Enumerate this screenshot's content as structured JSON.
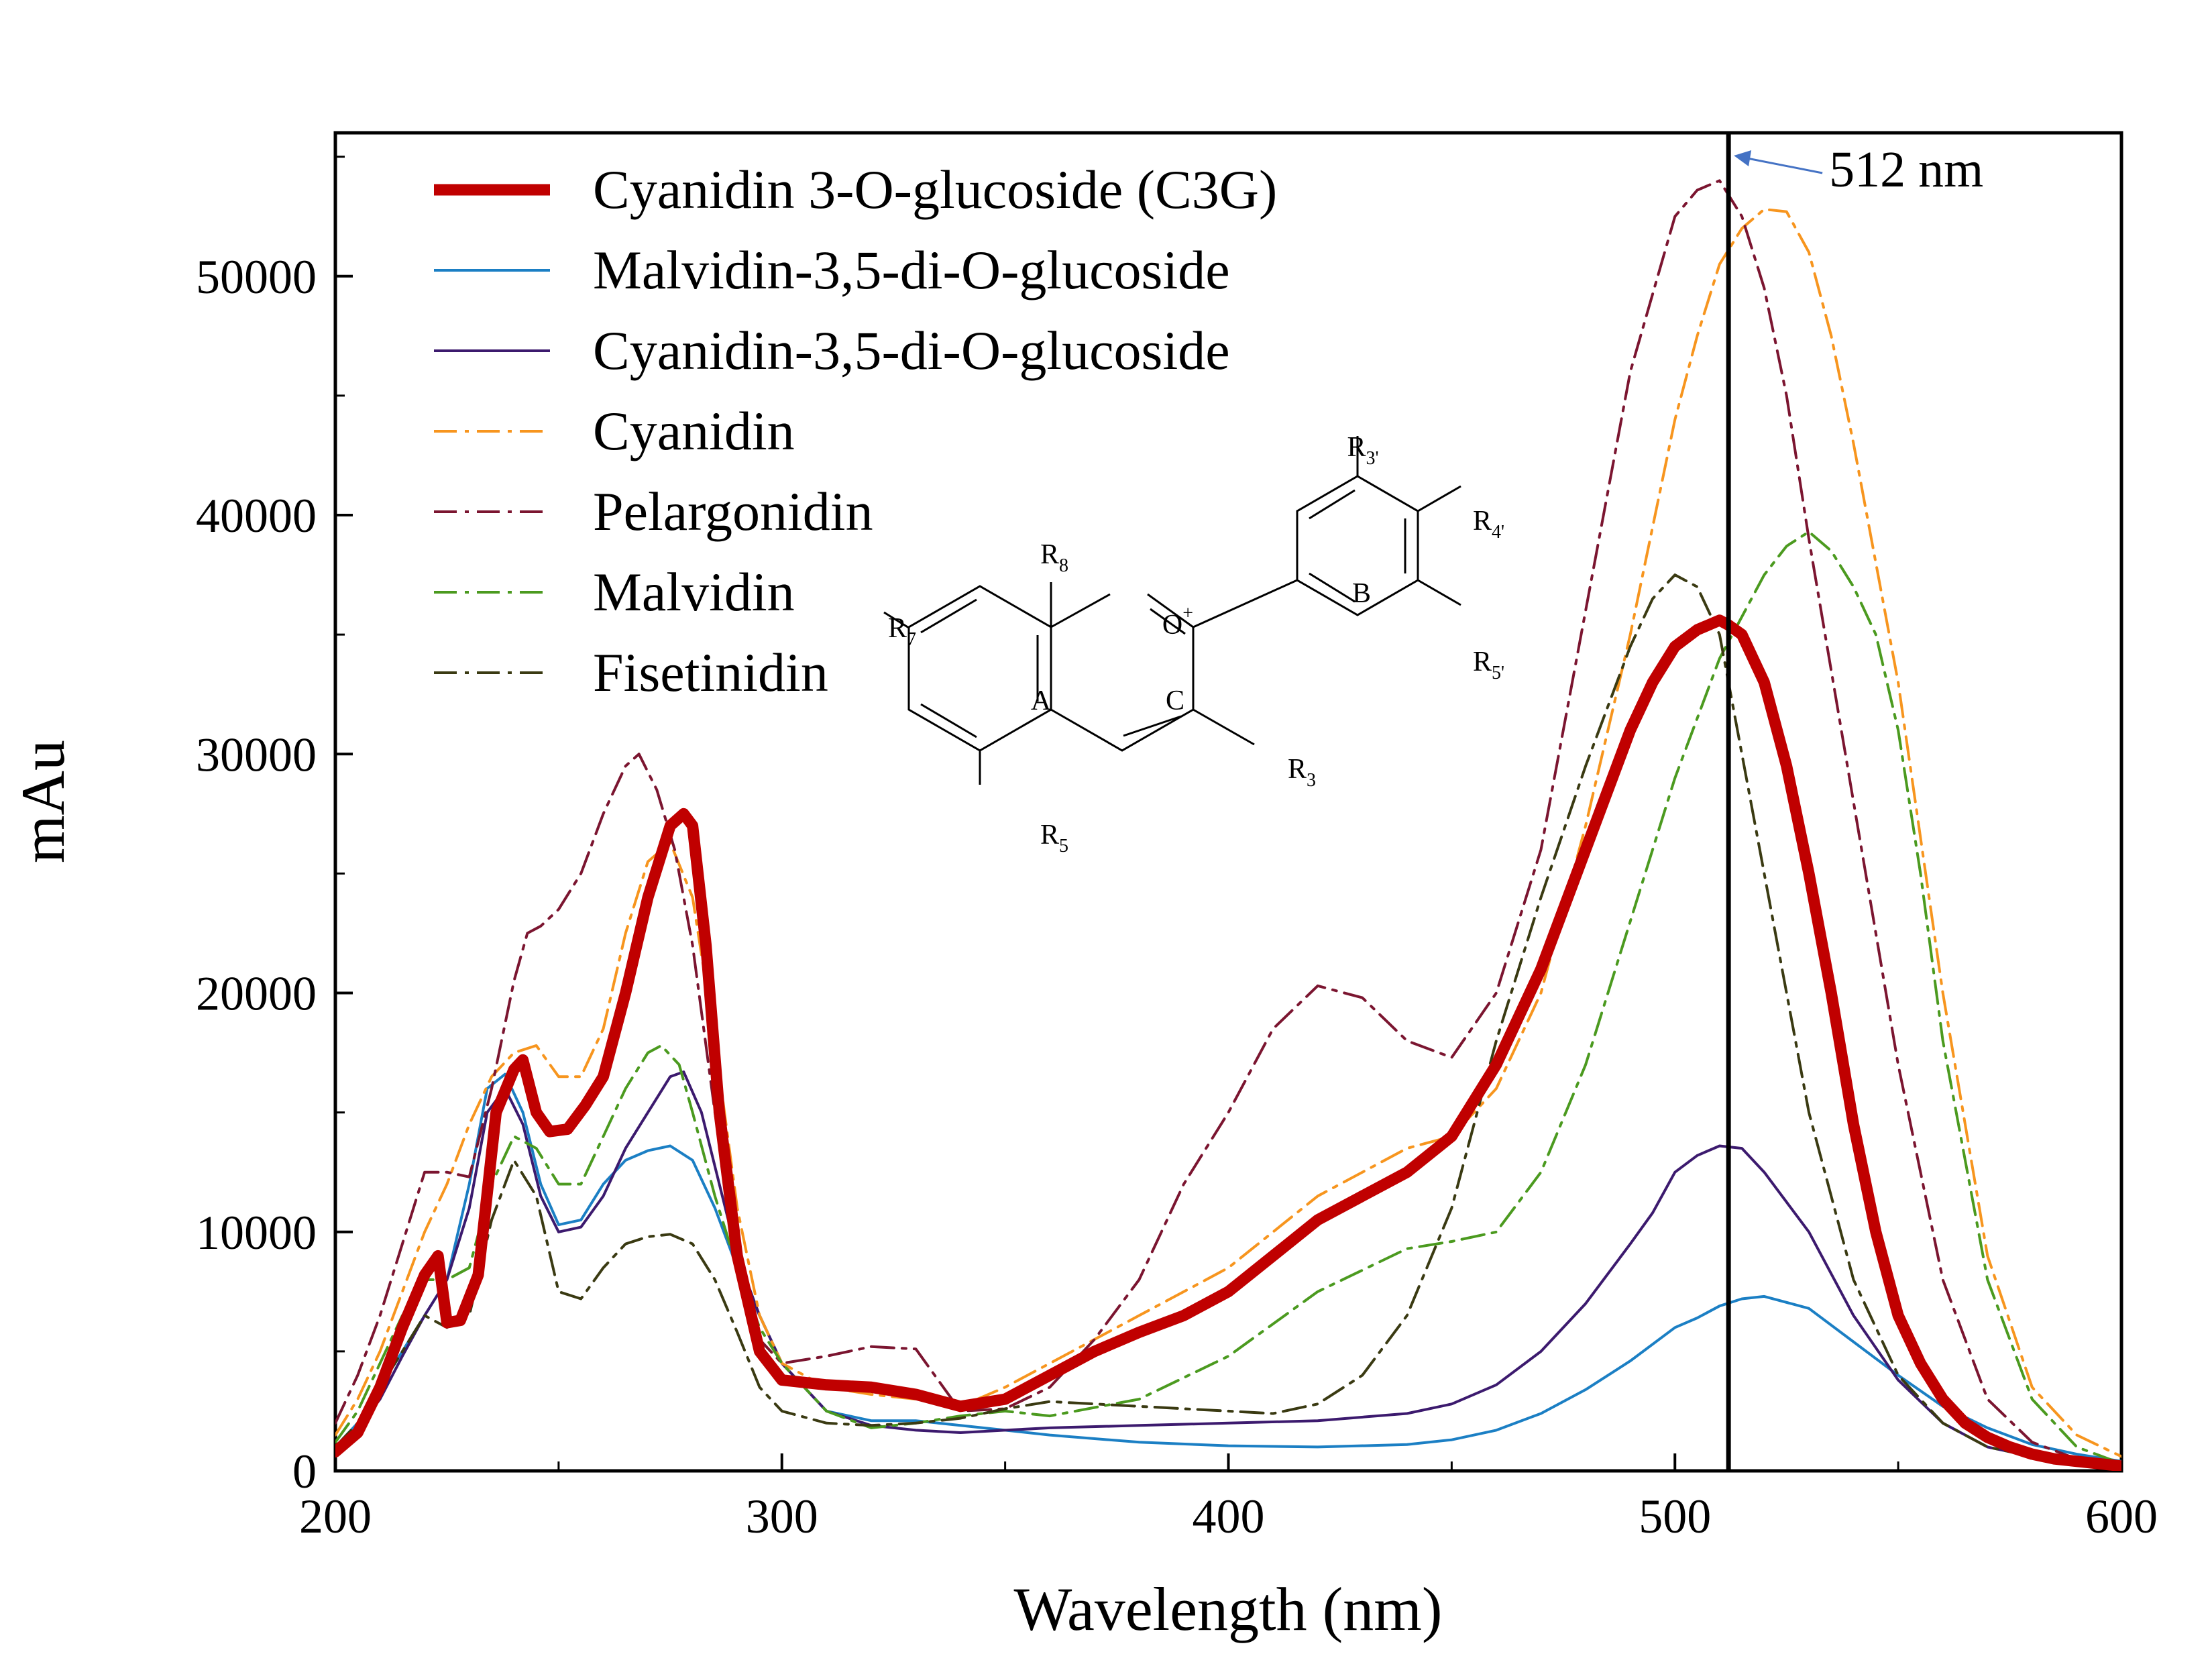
{
  "chart_data": {
    "type": "line",
    "title": "",
    "xlabel": "Wavelength (nm)",
    "ylabel": "mAu",
    "xlim": [
      200,
      600
    ],
    "ylim": [
      0,
      56000
    ],
    "xticks": [
      200,
      300,
      400,
      500,
      600
    ],
    "yticks": [
      0,
      10000,
      20000,
      30000,
      40000,
      50000
    ],
    "grid": false,
    "legend_position": "top-left",
    "annotations": [
      {
        "text": "512 nm",
        "x": 512,
        "type": "vertical-line"
      }
    ],
    "inset": {
      "type": "chemical-structure",
      "ring_labels": [
        "A",
        "C",
        "B"
      ],
      "oxonium_label": "O",
      "oxonium_charge": "+",
      "substituents": [
        {
          "base": "R",
          "sub": "8"
        },
        {
          "base": "R",
          "sub": "7"
        },
        {
          "base": "R",
          "sub": "5"
        },
        {
          "base": "R",
          "sub": "3"
        },
        {
          "base": "R",
          "sub": "3'"
        },
        {
          "base": "R",
          "sub": "4'"
        },
        {
          "base": "R",
          "sub": "5'"
        }
      ]
    },
    "series": [
      {
        "name": "Cyanidin 3-O-glucoside (C3G)",
        "color": "#c00000",
        "style": "solid",
        "weight": "bold",
        "x": [
          200,
          205,
          210,
          215,
          220,
          223,
          225,
          228,
          232,
          236,
          240,
          242,
          245,
          248,
          252,
          256,
          260,
          265,
          270,
          275,
          278,
          280,
          283,
          286,
          290,
          295,
          300,
          305,
          310,
          320,
          330,
          340,
          350,
          360,
          370,
          380,
          390,
          400,
          410,
          420,
          430,
          440,
          450,
          460,
          470,
          480,
          490,
          495,
          500,
          505,
          510,
          512,
          515,
          520,
          525,
          530,
          535,
          540,
          545,
          550,
          555,
          560,
          565,
          570,
          575,
          580,
          585,
          590,
          595,
          600
        ],
        "y": [
          800,
          1600,
          3500,
          6000,
          8200,
          9000,
          6200,
          6300,
          8200,
          15000,
          16800,
          17200,
          15000,
          14200,
          14300,
          15300,
          16500,
          20000,
          24000,
          27000,
          27500,
          27000,
          22000,
          15000,
          9000,
          5000,
          3800,
          3700,
          3600,
          3500,
          3200,
          2700,
          3000,
          4000,
          5000,
          5800,
          6500,
          7500,
          9000,
          10500,
          11500,
          12500,
          14000,
          17000,
          21000,
          26000,
          31000,
          33000,
          34500,
          35200,
          35600,
          35400,
          35000,
          33000,
          29500,
          25000,
          20000,
          14500,
          10000,
          6500,
          4500,
          3000,
          2000,
          1400,
          1000,
          700,
          500,
          400,
          300,
          200
        ]
      },
      {
        "name": "Malvidin-3,5-di-O-glucoside",
        "color": "#1b7fc4",
        "style": "solid",
        "weight": "normal",
        "x": [
          200,
          205,
          210,
          215,
          220,
          225,
          230,
          234,
          238,
          242,
          246,
          250,
          255,
          260,
          265,
          270,
          275,
          280,
          285,
          290,
          295,
          300,
          310,
          320,
          330,
          340,
          350,
          360,
          380,
          400,
          420,
          440,
          450,
          460,
          470,
          480,
          490,
          500,
          505,
          510,
          515,
          520,
          530,
          540,
          550,
          560,
          570,
          580,
          590,
          600
        ],
        "y": [
          1000,
          2000,
          3500,
          5000,
          6500,
          8000,
          12000,
          16000,
          16600,
          15000,
          12000,
          10300,
          10500,
          12000,
          13000,
          13400,
          13600,
          13000,
          11000,
          8500,
          6500,
          4500,
          2500,
          2100,
          2100,
          1900,
          1700,
          1500,
          1200,
          1050,
          1000,
          1100,
          1300,
          1700,
          2400,
          3400,
          4600,
          6000,
          6400,
          6900,
          7200,
          7300,
          6800,
          5400,
          4000,
          2700,
          1800,
          1100,
          700,
          400
        ]
      },
      {
        "name": "Cyanidin-3,5-di-O-glucoside",
        "color": "#3c1a6e",
        "style": "solid",
        "weight": "normal",
        "x": [
          200,
          205,
          210,
          215,
          220,
          225,
          230,
          234,
          238,
          242,
          246,
          250,
          255,
          260,
          265,
          270,
          275,
          278,
          282,
          286,
          290,
          295,
          300,
          310,
          320,
          330,
          340,
          350,
          360,
          380,
          400,
          420,
          440,
          450,
          460,
          470,
          480,
          490,
          495,
          500,
          505,
          510,
          515,
          520,
          530,
          540,
          550,
          560,
          570,
          580,
          590,
          600
        ],
        "y": [
          900,
          1800,
          3000,
          4800,
          6500,
          8000,
          11000,
          15000,
          16000,
          14500,
          11500,
          10000,
          10200,
          11500,
          13500,
          15000,
          16500,
          16700,
          15000,
          12000,
          9000,
          6500,
          4500,
          2500,
          1900,
          1700,
          1600,
          1700,
          1800,
          1900,
          2000,
          2100,
          2400,
          2800,
          3600,
          5000,
          7000,
          9500,
          10800,
          12500,
          13200,
          13600,
          13500,
          12500,
          10000,
          6500,
          3800,
          2000,
          1000,
          600,
          300,
          200
        ]
      },
      {
        "name": "Cyanidin",
        "color": "#f7951e",
        "style": "dashdot",
        "weight": "normal",
        "x": [
          200,
          205,
          210,
          215,
          220,
          225,
          230,
          235,
          240,
          245,
          250,
          255,
          260,
          265,
          270,
          275,
          280,
          285,
          290,
          295,
          300,
          310,
          320,
          330,
          340,
          350,
          360,
          380,
          400,
          420,
          440,
          450,
          460,
          470,
          480,
          490,
          500,
          505,
          510,
          515,
          520,
          525,
          530,
          535,
          540,
          550,
          560,
          570,
          580,
          590,
          600
        ],
        "y": [
          1500,
          3000,
          5000,
          7500,
          10000,
          12000,
          14500,
          16500,
          17500,
          17800,
          16500,
          16500,
          18500,
          22500,
          25500,
          26300,
          24000,
          18000,
          11000,
          6500,
          4500,
          3500,
          3200,
          3000,
          2700,
          3500,
          4500,
          6500,
          8500,
          11500,
          13500,
          14000,
          16000,
          20000,
          27000,
          35000,
          44000,
          47500,
          50500,
          52000,
          52800,
          52700,
          51000,
          47500,
          43000,
          33000,
          20000,
          9000,
          3500,
          1500,
          600
        ]
      },
      {
        "name": "Pelargonidin",
        "color": "#7b1530",
        "style": "dashdot",
        "weight": "normal",
        "x": [
          200,
          205,
          210,
          215,
          220,
          225,
          230,
          235,
          240,
          243,
          246,
          250,
          255,
          260,
          265,
          268,
          272,
          276,
          280,
          285,
          290,
          295,
          300,
          310,
          320,
          330,
          340,
          350,
          360,
          370,
          380,
          390,
          400,
          410,
          420,
          430,
          440,
          450,
          460,
          470,
          480,
          490,
          500,
          505,
          510,
          515,
          520,
          525,
          530,
          540,
          550,
          560,
          570,
          580,
          590,
          600
        ],
        "y": [
          2000,
          4000,
          6500,
          9500,
          12500,
          12500,
          12300,
          16000,
          20500,
          22500,
          22800,
          23500,
          25000,
          27500,
          29500,
          30000,
          28500,
          26000,
          22000,
          15000,
          9000,
          5500,
          4500,
          4800,
          5200,
          5100,
          2500,
          2600,
          3500,
          5500,
          8000,
          12000,
          15000,
          18500,
          20300,
          19800,
          18000,
          17300,
          20000,
          26000,
          36000,
          46000,
          52500,
          53600,
          54000,
          52500,
          49500,
          45000,
          39000,
          28000,
          17000,
          8000,
          3000,
          1200,
          500,
          300
        ]
      },
      {
        "name": "Malvidin",
        "color": "#4b9a1f",
        "style": "dashdot",
        "weight": "normal",
        "x": [
          200,
          205,
          210,
          215,
          220,
          225,
          230,
          235,
          240,
          245,
          250,
          255,
          260,
          265,
          270,
          273,
          277,
          280,
          285,
          290,
          295,
          300,
          310,
          320,
          330,
          340,
          350,
          360,
          380,
          400,
          420,
          440,
          450,
          460,
          470,
          480,
          490,
          500,
          510,
          520,
          525,
          530,
          535,
          540,
          545,
          550,
          555,
          560,
          570,
          580,
          590,
          600
        ],
        "y": [
          1200,
          2500,
          4500,
          6500,
          8000,
          8000,
          8500,
          12000,
          14000,
          13500,
          12000,
          12000,
          14000,
          16000,
          17500,
          17800,
          17000,
          15000,
          11500,
          8500,
          6000,
          4500,
          2500,
          1800,
          2000,
          2300,
          2500,
          2300,
          3000,
          4800,
          7500,
          9300,
          9600,
          10000,
          12500,
          17000,
          23000,
          29000,
          34000,
          37500,
          38700,
          39300,
          38500,
          37000,
          35000,
          31000,
          25000,
          18000,
          8000,
          3000,
          1000,
          300
        ]
      },
      {
        "name": "Fisetinidin",
        "color": "#3a3a12",
        "style": "dashdot",
        "weight": "normal",
        "x": [
          200,
          205,
          210,
          215,
          220,
          225,
          230,
          235,
          240,
          245,
          250,
          255,
          260,
          265,
          270,
          275,
          280,
          285,
          290,
          295,
          300,
          310,
          320,
          330,
          340,
          350,
          360,
          380,
          400,
          410,
          420,
          430,
          440,
          450,
          460,
          470,
          480,
          490,
          495,
          500,
          505,
          510,
          515,
          520,
          530,
          540,
          550,
          560,
          570,
          580,
          590,
          600
        ],
        "y": [
          1000,
          2000,
          3500,
          5000,
          6500,
          6000,
          6500,
          10500,
          13000,
          11500,
          7500,
          7200,
          8500,
          9500,
          9800,
          9900,
          9500,
          8000,
          5800,
          3500,
          2500,
          2000,
          1900,
          2000,
          2200,
          2600,
          2900,
          2700,
          2500,
          2400,
          2800,
          4000,
          6500,
          11000,
          18000,
          24000,
          29500,
          34500,
          36500,
          37500,
          37000,
          35000,
          30000,
          25000,
          15000,
          8000,
          4000,
          2000,
          1000,
          600,
          300,
          200
        ]
      }
    ]
  }
}
